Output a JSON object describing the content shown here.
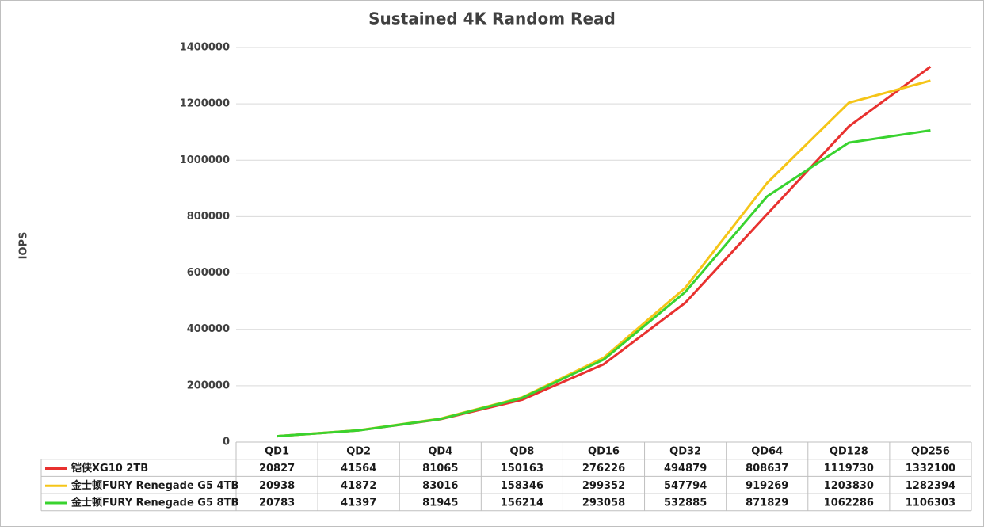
{
  "chart_data": {
    "type": "line",
    "title": "Sustained 4K Random Read",
    "y_label": "IOPS",
    "categories": [
      "QD1",
      "QD2",
      "QD4",
      "QD8",
      "QD16",
      "QD32",
      "QD64",
      "QD128",
      "QD256"
    ],
    "series": [
      {
        "name": "铠侠XG10 2TB",
        "color": "#e8312f",
        "values": [
          20827,
          41564,
          81065,
          150163,
          276226,
          494879,
          808637,
          1119730,
          1332100
        ]
      },
      {
        "name": "金士顿FURY Renegade G5 4TB",
        "color": "#f5c518",
        "values": [
          20938,
          41872,
          83016,
          158346,
          299352,
          547794,
          919269,
          1203830,
          1282394
        ]
      },
      {
        "name": "金士顿FURY Renegade G5 8TB",
        "color": "#39d32f",
        "values": [
          20783,
          41397,
          81945,
          156214,
          293058,
          532885,
          871829,
          1062286,
          1106303
        ]
      }
    ],
    "ylim": [
      0,
      1400000
    ],
    "yticks": [
      0,
      200000,
      400000,
      600000,
      800000,
      1000000,
      1200000,
      1400000
    ],
    "grid": true
  }
}
